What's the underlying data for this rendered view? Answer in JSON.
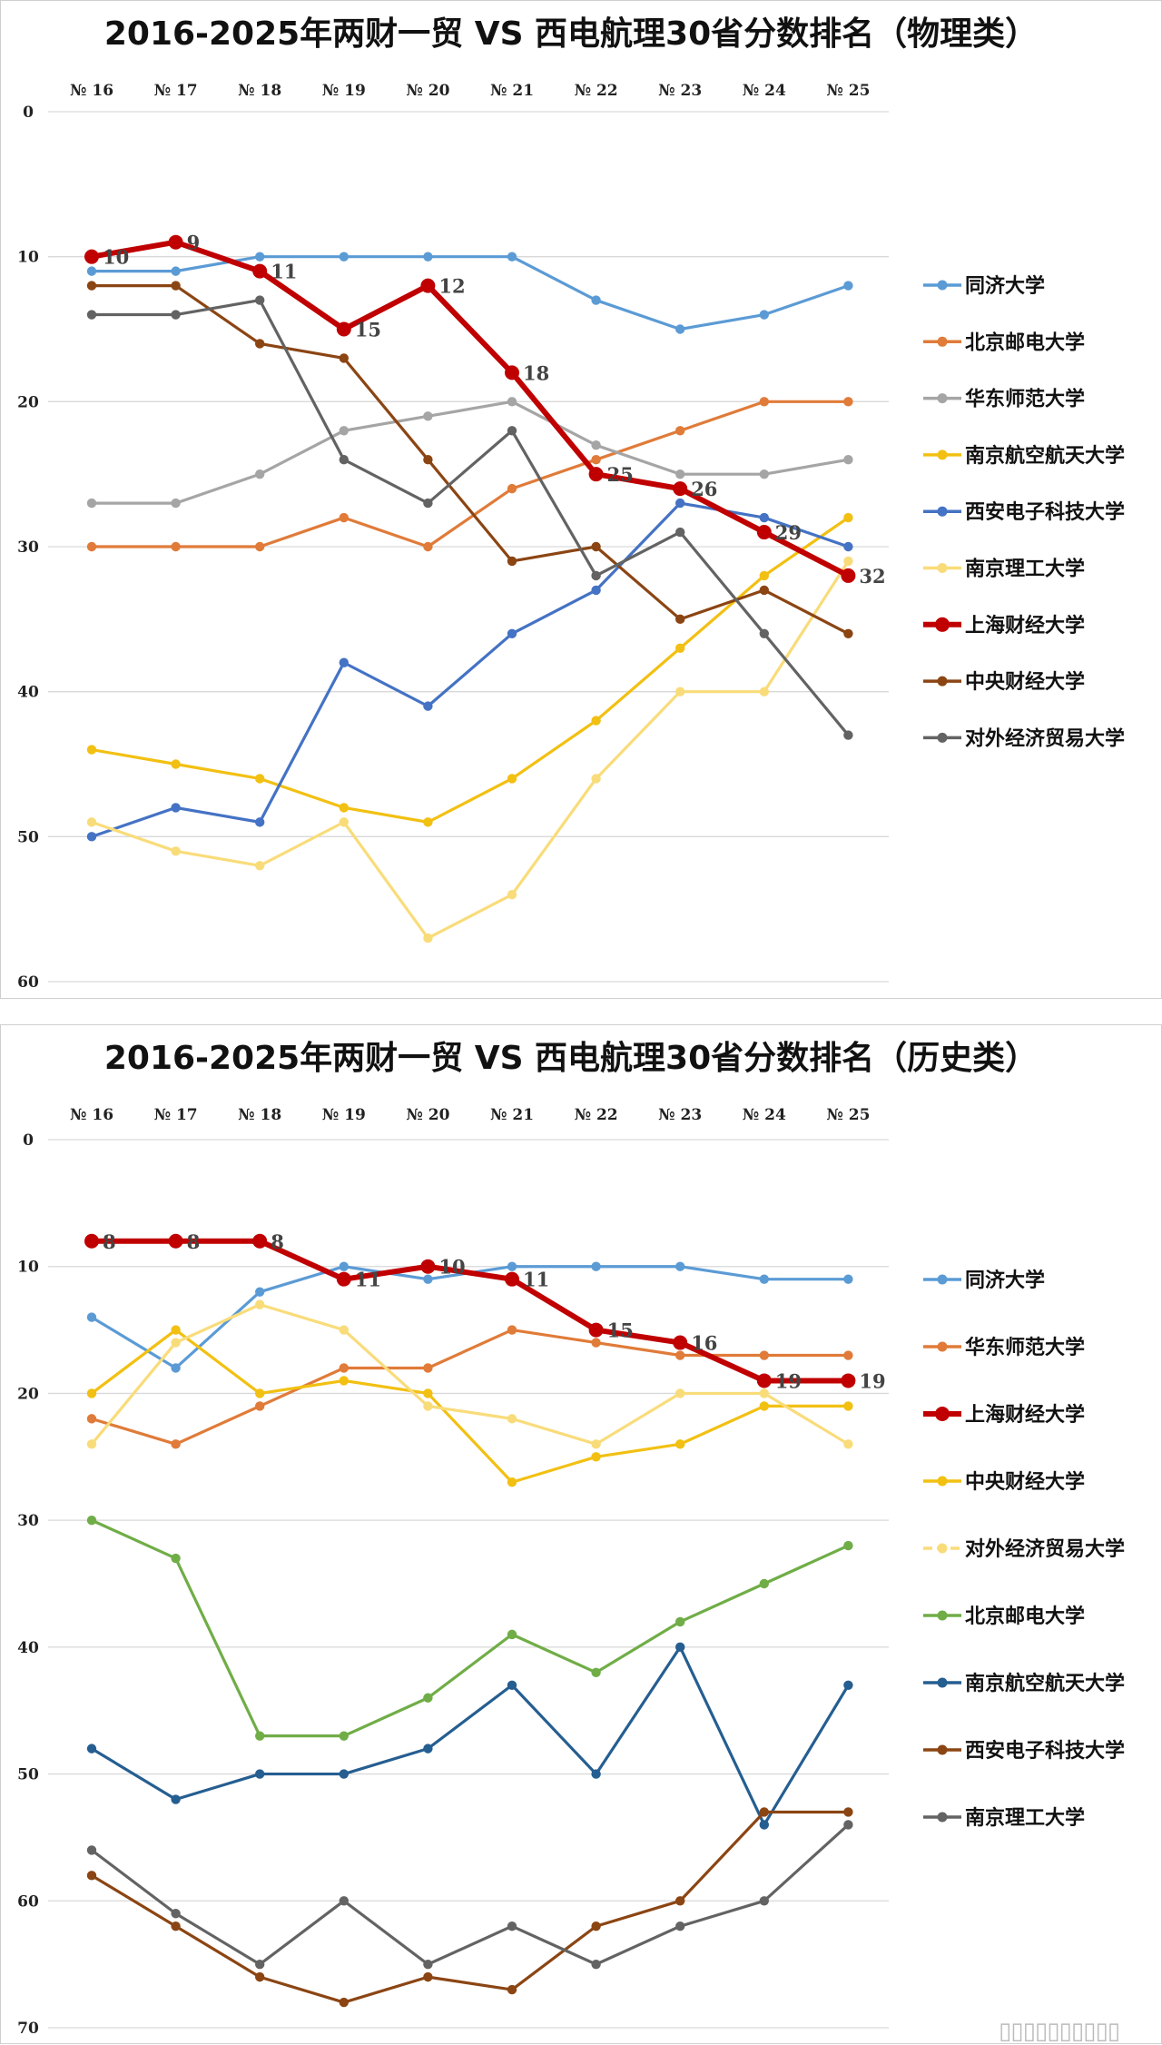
{
  "watermark": "▯▯▯▯▯▯▯▯▯▯",
  "chart_data": [
    {
      "type": "line",
      "title": "2016-2025年两财一贸 VS 西电航理30省分数排名（物理类）",
      "categories": [
        "№ 16",
        "№ 17",
        "№ 18",
        "№ 19",
        "№ 20",
        "№ 21",
        "№ 22",
        "№ 23",
        "№ 24",
        "№ 25"
      ],
      "ylim": [
        0,
        60
      ],
      "yticks": [
        "0",
        "10",
        "20",
        "30",
        "40",
        "50",
        "60"
      ],
      "y_inverted": true,
      "grid": true,
      "legend_position": "right",
      "series": [
        {
          "name": "同济大学",
          "color": "#5b9bd5",
          "values": [
            11,
            11,
            10,
            10,
            10,
            10,
            13,
            15,
            14,
            12
          ]
        },
        {
          "name": "北京邮电大学",
          "color": "#e07b39",
          "values": [
            30,
            30,
            30,
            28,
            30,
            26,
            24,
            22,
            20,
            20
          ]
        },
        {
          "name": "华东师范大学",
          "color": "#a5a5a5",
          "values": [
            27,
            27,
            25,
            22,
            21,
            20,
            23,
            25,
            25,
            24
          ]
        },
        {
          "name": "南京航空航天大学",
          "color": "#f2c012",
          "values": [
            44,
            45,
            46,
            48,
            49,
            46,
            42,
            37,
            32,
            28
          ]
        },
        {
          "name": "西安电子科技大学",
          "color": "#4472c4",
          "values": [
            50,
            48,
            49,
            38,
            41,
            36,
            33,
            27,
            28,
            30
          ]
        },
        {
          "name": "南京理工大学",
          "color": "#f9dc7a",
          "values": [
            49,
            51,
            52,
            49,
            57,
            54,
            46,
            40,
            40,
            31
          ]
        },
        {
          "name": "上海财经大学",
          "color": "#c00000",
          "highlight": true,
          "values": [
            10,
            9,
            11,
            15,
            12,
            18,
            25,
            26,
            29,
            32
          ],
          "labels": [
            "10",
            "9",
            "11",
            "15",
            "12",
            "18",
            "25",
            "26",
            "29",
            "32"
          ]
        },
        {
          "name": "中央财经大学",
          "color": "#8b4513",
          "values": [
            12,
            12,
            16,
            17,
            24,
            31,
            30,
            35,
            33,
            36
          ]
        },
        {
          "name": "对外经济贸易大学",
          "color": "#636363",
          "values": [
            14,
            14,
            13,
            24,
            27,
            22,
            32,
            29,
            36,
            43
          ]
        }
      ]
    },
    {
      "type": "line",
      "title": "2016-2025年两财一贸 VS 西电航理30省分数排名（历史类）",
      "categories": [
        "№ 16",
        "№ 17",
        "№ 18",
        "№ 19",
        "№ 20",
        "№ 21",
        "№ 22",
        "№ 23",
        "№ 24",
        "№ 25"
      ],
      "ylim": [
        0,
        70
      ],
      "yticks": [
        "0",
        "10",
        "20",
        "30",
        "40",
        "50",
        "60",
        "70"
      ],
      "y_inverted": true,
      "grid": true,
      "legend_position": "right",
      "series": [
        {
          "name": "同济大学",
          "color": "#5b9bd5",
          "values": [
            14,
            18,
            12,
            10,
            11,
            10,
            10,
            10,
            11,
            11
          ]
        },
        {
          "name": "华东师范大学",
          "color": "#e07b39",
          "values": [
            22,
            24,
            21,
            18,
            18,
            15,
            16,
            17,
            17,
            17
          ]
        },
        {
          "name": "上海财经大学",
          "color": "#c00000",
          "highlight": true,
          "values": [
            8,
            8,
            8,
            11,
            10,
            11,
            15,
            16,
            19,
            19
          ],
          "labels": [
            "8",
            "8",
            "8",
            "11",
            "10",
            "11",
            "15",
            "16",
            "19",
            "19"
          ]
        },
        {
          "name": "中央财经大学",
          "color": "#f2c012",
          "values": [
            20,
            15,
            20,
            19,
            20,
            27,
            25,
            24,
            21,
            21
          ]
        },
        {
          "name": "对外经济贸易大学",
          "color": "#f9dc7a",
          "dashed_legend": true,
          "values": [
            24,
            16,
            13,
            15,
            21,
            22,
            24,
            20,
            20,
            24
          ]
        },
        {
          "name": "北京邮电大学",
          "color": "#70ad47",
          "values": [
            30,
            33,
            47,
            47,
            44,
            39,
            42,
            38,
            35,
            32
          ]
        },
        {
          "name": "南京航空航天大学",
          "color": "#255e91",
          "values": [
            48,
            52,
            50,
            50,
            48,
            43,
            50,
            40,
            54,
            43
          ]
        },
        {
          "name": "西安电子科技大学",
          "color": "#8b4513",
          "values": [
            58,
            62,
            66,
            68,
            66,
            67,
            62,
            60,
            53,
            53
          ]
        },
        {
          "name": "南京理工大学",
          "color": "#636363",
          "values": [
            56,
            61,
            65,
            60,
            65,
            62,
            65,
            62,
            60,
            54
          ]
        }
      ]
    }
  ]
}
